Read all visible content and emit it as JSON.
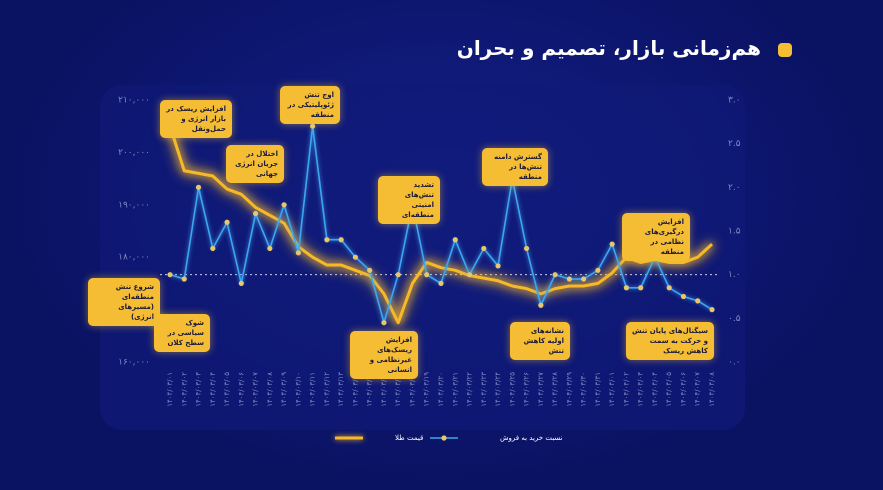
{
  "chart_data": {
    "type": "line",
    "title": "هم‌زمانی بازار، تصمیم و بحران",
    "x": [
      "۱۴۰۴/۰۳/۰۱",
      "۱۴۰۴/۰۳/۰۲",
      "۱۴۰۴/۰۳/۰۳",
      "۱۴۰۴/۰۳/۰۴",
      "۱۴۰۴/۰۳/۰۵",
      "۱۴۰۴/۰۳/۰۶",
      "۱۴۰۴/۰۳/۰۷",
      "۱۴۰۴/۰۳/۰۸",
      "۱۴۰۴/۰۳/۰۹",
      "۱۴۰۴/۰۳/۱۰",
      "۱۴۰۴/۰۳/۱۱",
      "۱۴۰۴/۰۳/۱۲",
      "۱۴۰۴/۰۳/۱۳",
      "۱۴۰۴/۰۳/۱۴",
      "۱۴۰۴/۰۳/۱۵",
      "۱۴۰۴/۰۳/۱۶",
      "۱۴۰۴/۰۳/۱۷",
      "۱۴۰۴/۰۳/۱۸",
      "۱۴۰۴/۰۳/۱۹",
      "۱۴۰۴/۰۳/۲۰",
      "۱۴۰۴/۰۳/۲۱",
      "۱۴۰۴/۰۳/۲۲",
      "۱۴۰۴/۰۳/۲۳",
      "۱۴۰۴/۰۳/۲۴",
      "۱۴۰۴/۰۳/۲۵",
      "۱۴۰۴/۰۳/۲۶",
      "۱۴۰۴/۰۳/۲۷",
      "۱۴۰۴/۰۳/۲۸",
      "۱۴۰۴/۰۳/۲۹",
      "۱۴۰۴/۰۳/۳۰",
      "۱۴۰۴/۰۳/۳۱",
      "۱۴۰۴/۰۴/۰۱",
      "۱۴۰۴/۰۴/۰۲",
      "۱۴۰۴/۰۴/۰۳",
      "۱۴۰۴/۰۴/۰۴",
      "۱۴۰۴/۰۴/۰۵",
      "۱۴۰۴/۰۴/۰۶",
      "۱۴۰۴/۰۴/۰۷",
      "۱۴۰۴/۰۴/۰۸"
    ],
    "series": [
      {
        "name": "قیمت طلا",
        "color": "#f7b928",
        "values": [
          205000,
          196500,
          196000,
          195500,
          193000,
          192000,
          189500,
          188000,
          186500,
          182000,
          180000,
          178500,
          178500,
          177500,
          176500,
          173000,
          167500,
          175000,
          179000,
          178000,
          177500,
          176500,
          176000,
          175500,
          174500,
          174000,
          173000,
          174000,
          174500,
          174500,
          175000,
          177000,
          180000,
          179000,
          179500,
          179000,
          179000,
          180000,
          182500
        ]
      },
      {
        "name": "نسبت خرید به فروش",
        "color": "#3ea6f0",
        "axis": "y2",
        "values": [
          1.0,
          0.95,
          2.0,
          1.3,
          1.6,
          0.9,
          1.7,
          1.3,
          1.8,
          1.25,
          2.7,
          1.4,
          1.4,
          1.2,
          1.05,
          0.45,
          1.0,
          1.8,
          1.0,
          0.9,
          1.4,
          1.0,
          1.3,
          1.1,
          2.1,
          1.3,
          0.65,
          1.0,
          0.95,
          0.95,
          1.05,
          1.35,
          0.85,
          0.85,
          1.2,
          0.85,
          0.75,
          0.7,
          0.6
        ]
      }
    ],
    "ylim": [
      160000,
      210000
    ],
    "yticks": [
      {
        "value": 160000,
        "label": "۱۶۰,۰۰۰"
      },
      {
        "value": 170000,
        "label": "۱۷۰,۰۰۰"
      },
      {
        "value": 180000,
        "label": "۱۸۰,۰۰۰"
      },
      {
        "value": 190000,
        "label": "۱۹۰,۰۰۰"
      },
      {
        "value": 200000,
        "label": "۲۰۰,۰۰۰"
      },
      {
        "value": 210000,
        "label": "۲۱۰,۰۰۰"
      }
    ],
    "y2lim": [
      0,
      3
    ],
    "y2ticks": [
      {
        "value": 0,
        "label": "۰.۰"
      },
      {
        "value": 0.5,
        "label": "۰.۵"
      },
      {
        "value": 1,
        "label": "۱.۰"
      },
      {
        "value": 1.5,
        "label": "۱.۵"
      },
      {
        "value": 2,
        "label": "۲.۰"
      },
      {
        "value": 2.5,
        "label": "۲.۵"
      },
      {
        "value": 3,
        "label": "۳.۰"
      }
    ],
    "y2_reference": 1,
    "legend": "bottom",
    "annotations": [
      "شروع تنش منطقه‌ای (مسیرهای انرژی)",
      "افزایش ریسک در بازار انرژی و حمل‌ونقل",
      "شوک سیاسی در سطح کلان",
      "اختلال در جریان انرژی جهانی",
      "اوج تنش ژئوپلیتیکی در منطقه",
      "تشدید تنش‌های امنیتی منطقه‌ای",
      "افزایش ریسک‌های غیرنظامی و انسانی",
      "گسترش دامنه تنش‌ها در منطقه",
      "نشانه‌های اولیه کاهش تنش",
      "افزایش درگیری‌های نظامی در منطقه",
      "سیگنال‌های پایان تنش و حرکت به سمت کاهش ریسک"
    ]
  }
}
